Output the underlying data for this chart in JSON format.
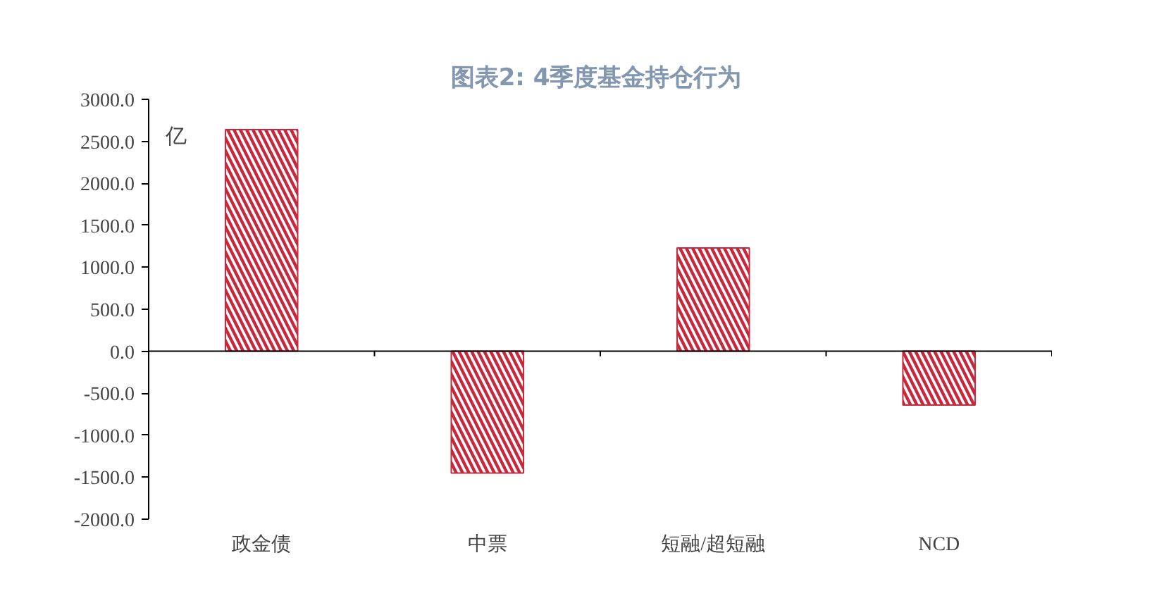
{
  "chart_data": {
    "type": "bar",
    "title": "图表2:  4季度基金持仓行为",
    "ylabel": "亿",
    "categories": [
      "政金债",
      "中票",
      "短融/超短融",
      "NCD"
    ],
    "values": [
      2640,
      -1450,
      1230,
      -640
    ],
    "color": "#c8283c",
    "ylim": [
      -2000,
      3000
    ],
    "yticks": [
      {
        "value": -2000,
        "label": "-2000.0"
      },
      {
        "value": -1500,
        "label": "-1500.0"
      },
      {
        "value": -1000,
        "label": "-1000.0"
      },
      {
        "value": -500,
        "label": "-500.0"
      },
      {
        "value": 0,
        "label": "0.0"
      },
      {
        "value": 500,
        "label": "500.0"
      },
      {
        "value": 1000,
        "label": "1000.0"
      },
      {
        "value": 1500,
        "label": "1500.0"
      },
      {
        "value": 2000,
        "label": "2000.0"
      },
      {
        "value": 2500,
        "label": "2500.0"
      },
      {
        "value": 3000,
        "label": "3000.0"
      }
    ]
  }
}
